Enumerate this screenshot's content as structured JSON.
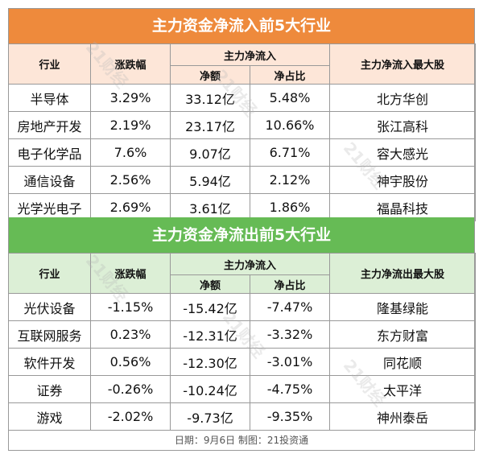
{
  "inflow": {
    "title": "主力资金净流入前5大行业",
    "headers": {
      "industry": "行业",
      "change": "涨跌幅",
      "group": "主力净流入",
      "amount": "净额",
      "ratio": "净占比",
      "top_stock": "主力净流入最大股"
    },
    "rows": [
      {
        "industry": "半导体",
        "change": "3.29%",
        "amount": "33.12亿",
        "ratio": "5.48%",
        "stock": "北方华创"
      },
      {
        "industry": "房地产开发",
        "change": "2.19%",
        "amount": "23.17亿",
        "ratio": "10.66%",
        "stock": "张江高科"
      },
      {
        "industry": "电子化学品",
        "change": "7.6%",
        "amount": "9.07亿",
        "ratio": "6.71%",
        "stock": "容大感光"
      },
      {
        "industry": "通信设备",
        "change": "2.56%",
        "amount": "5.94亿",
        "ratio": "2.12%",
        "stock": "神宇股份"
      },
      {
        "industry": "光学光电子",
        "change": "2.69%",
        "amount": "3.61亿",
        "ratio": "1.86%",
        "stock": "福晶科技"
      }
    ]
  },
  "outflow": {
    "title": "主力资金净流出前5大行业",
    "headers": {
      "industry": "行业",
      "change": "涨跌幅",
      "group": "主力净流入",
      "amount": "净额",
      "ratio": "净占比",
      "top_stock": "主力净流出最大股"
    },
    "rows": [
      {
        "industry": "光伏设备",
        "change": "-1.15%",
        "amount": "-15.42亿",
        "ratio": "-7.47%",
        "stock": "隆基绿能"
      },
      {
        "industry": "互联网服务",
        "change": "0.23%",
        "amount": "-12.31亿",
        "ratio": "-3.32%",
        "stock": "东方财富"
      },
      {
        "industry": "软件开发",
        "change": "0.56%",
        "amount": "-12.30亿",
        "ratio": "-3.01%",
        "stock": "同花顺"
      },
      {
        "industry": "证券",
        "change": "-0.26%",
        "amount": "-10.24亿",
        "ratio": "-4.75%",
        "stock": "太平洋"
      },
      {
        "industry": "游戏",
        "change": "-2.02%",
        "amount": "-9.73亿",
        "ratio": "-9.35%",
        "stock": "神州泰岳"
      }
    ]
  },
  "footer": "日期：9月6日 制图：21投资通",
  "watermark": "21财经",
  "colors": {
    "inflow_banner": "#ee8a3c",
    "inflow_header": "#fde6d8",
    "outflow_banner": "#66bb55",
    "outflow_header": "#dcefd6"
  }
}
